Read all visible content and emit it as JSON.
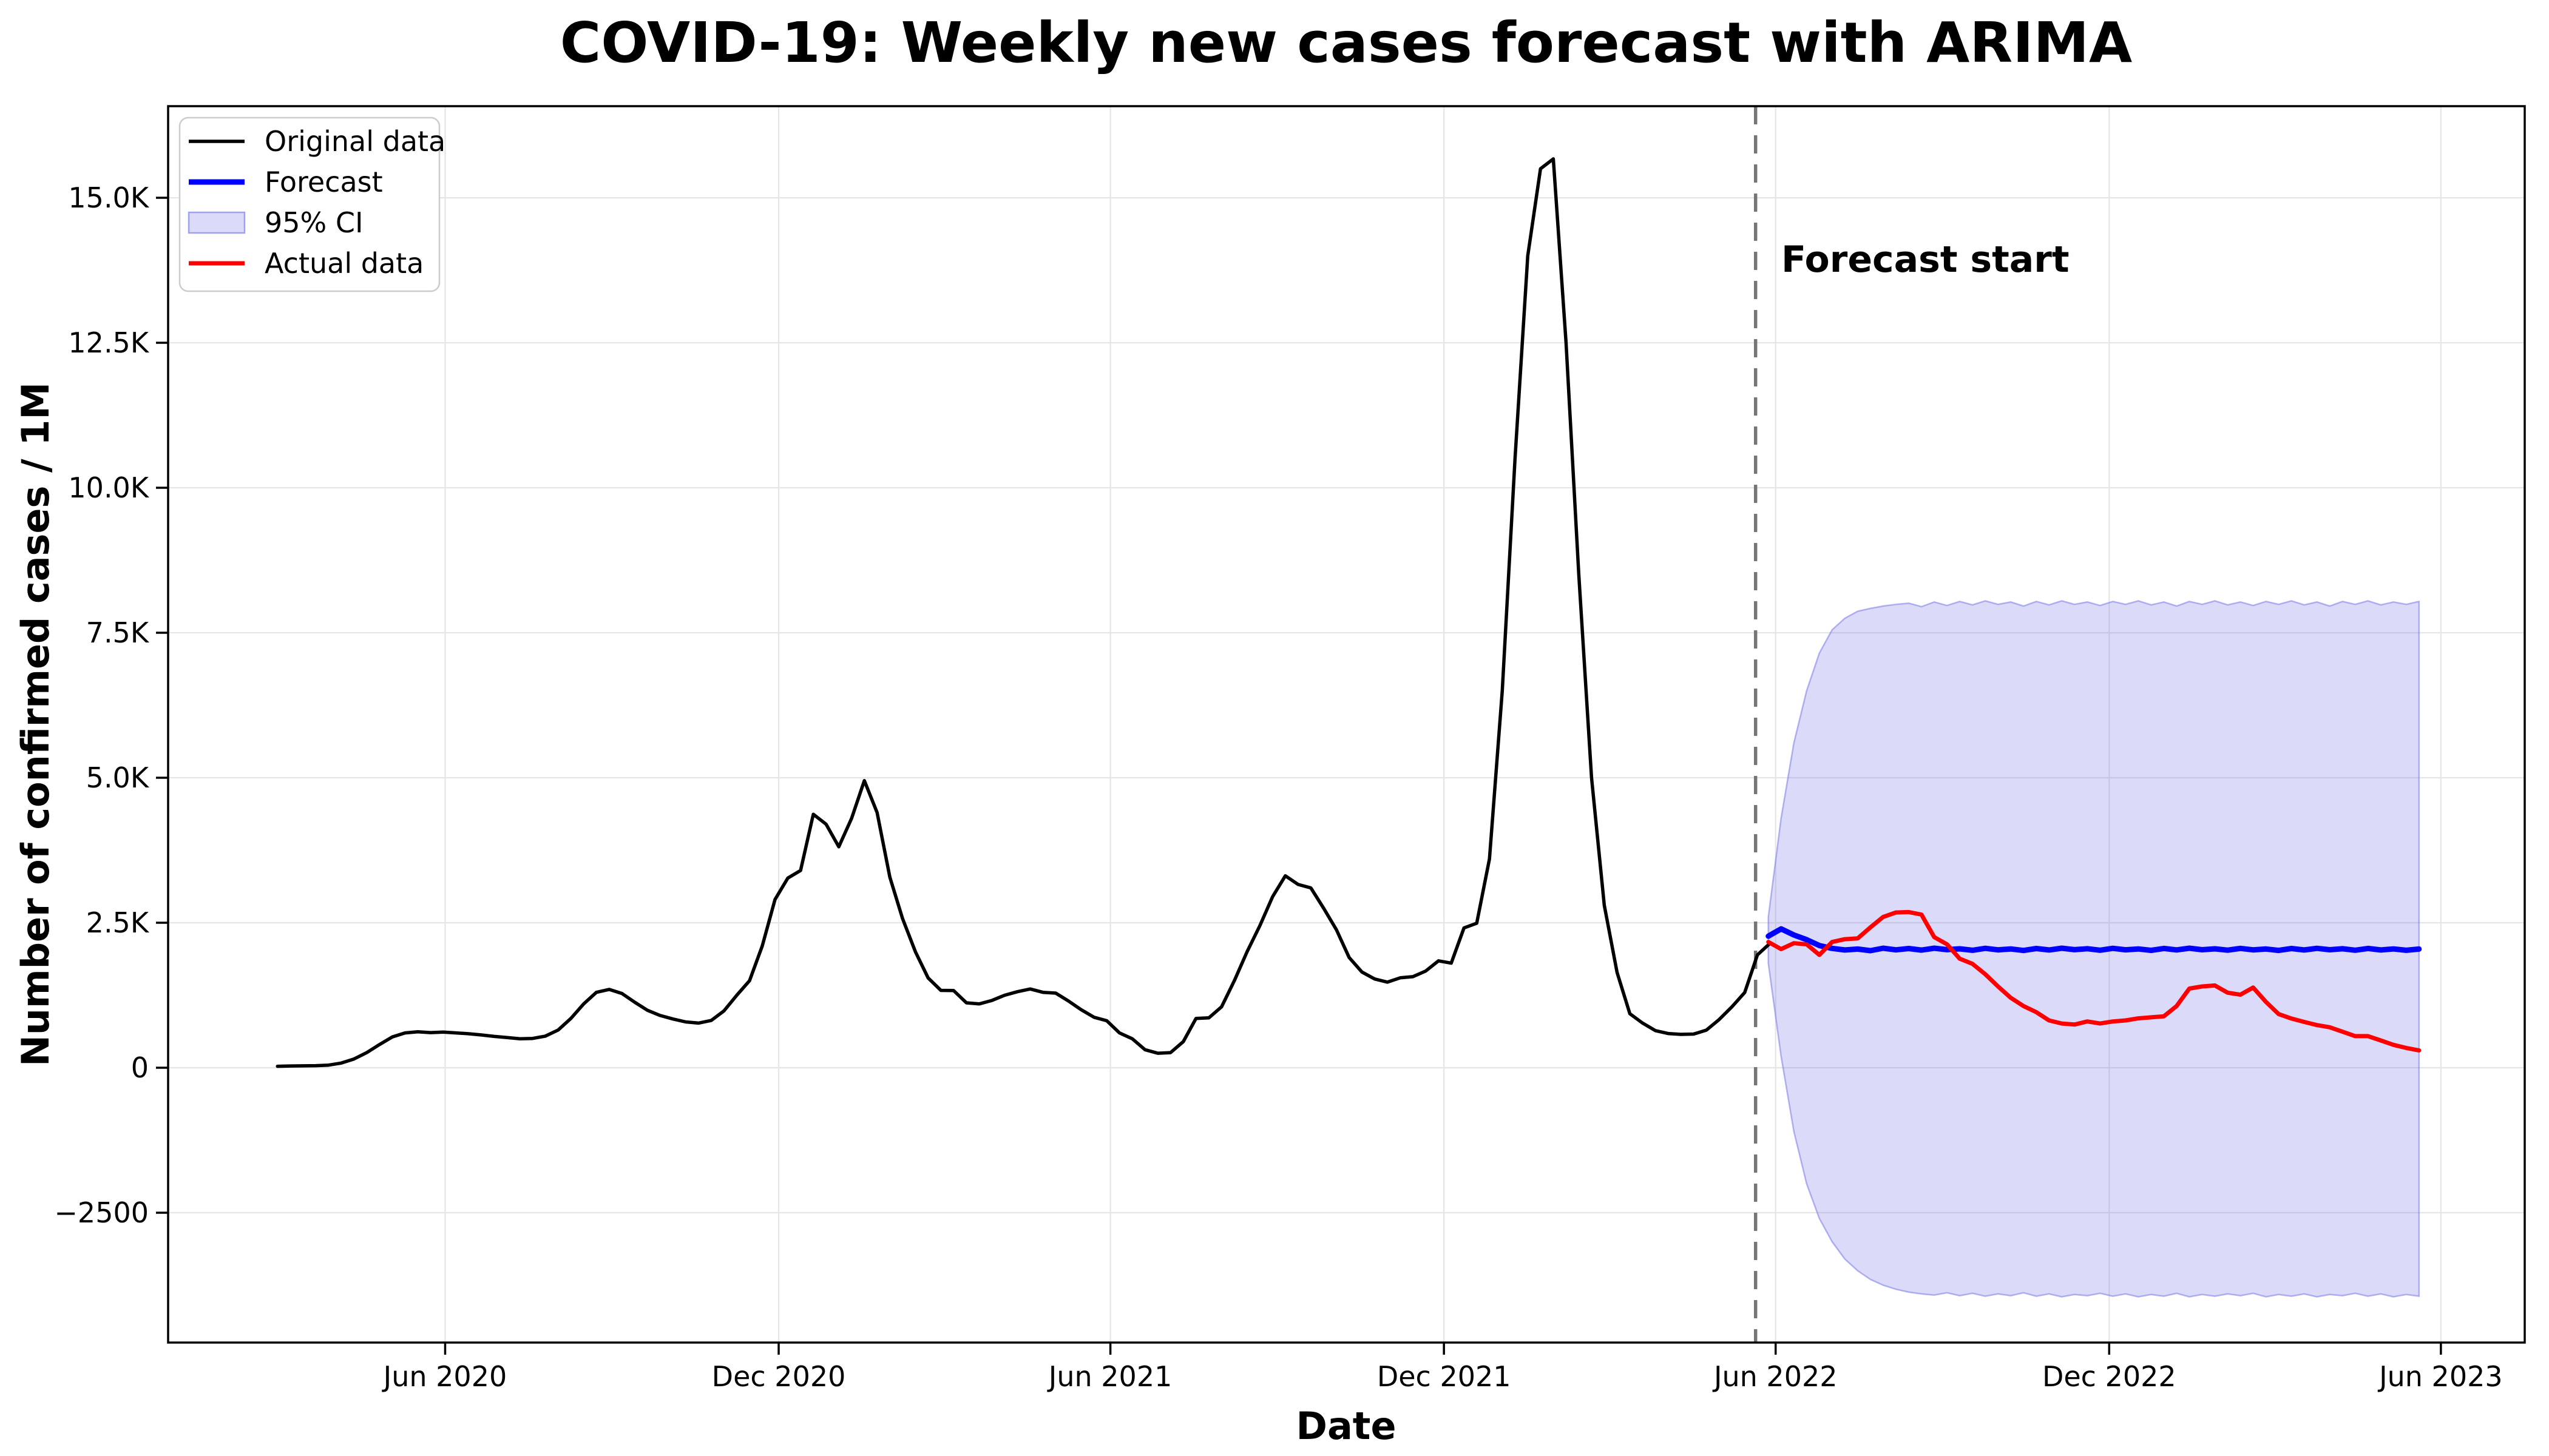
{
  "chart_data": {
    "type": "line",
    "title": "COVID-19: Weekly new cases forecast with ARIMA",
    "xlabel": "Date",
    "ylabel": "Number of confirmed cases / 1M",
    "annotation": "Forecast start",
    "grid": true,
    "forecast_start": "2022-05-21",
    "x_axis": {
      "range": [
        "2020-01-01",
        "2023-07-17"
      ],
      "ticks": [
        {
          "date": "2020-06-01",
          "label": "Jun 2020"
        },
        {
          "date": "2020-12-01",
          "label": "Dec 2020"
        },
        {
          "date": "2021-06-01",
          "label": "Jun 2021"
        },
        {
          "date": "2021-12-01",
          "label": "Dec 2021"
        },
        {
          "date": "2022-06-01",
          "label": "Jun 2022"
        },
        {
          "date": "2022-12-01",
          "label": "Dec 2022"
        },
        {
          "date": "2023-06-01",
          "label": "Jun 2023"
        }
      ]
    },
    "y_axis": {
      "range": [
        -4739,
        16580
      ],
      "ticks": [
        {
          "value": 15000,
          "label": "15.0K"
        },
        {
          "value": 12500,
          "label": "12.5K"
        },
        {
          "value": 10000,
          "label": "10.0K"
        },
        {
          "value": 7500,
          "label": "7.5K"
        },
        {
          "value": 5000,
          "label": "5.0K"
        },
        {
          "value": 2500,
          "label": "2.5K"
        },
        {
          "value": 0,
          "label": "0"
        },
        {
          "value": -2500,
          "label": "-2500"
        }
      ]
    },
    "colors": {
      "original": "#000000",
      "forecast": "#0000ff",
      "actual": "#ff0000",
      "ci_fill": "rgba(110,110,230,0.25)",
      "ci_edge": "rgba(110,110,230,0.5)",
      "grid": "#e5e5e5",
      "spine": "#000000",
      "forecast_start_line": "#757575",
      "legend_border": "#cccccc"
    },
    "legend": {
      "position": "upper left",
      "items": [
        {
          "label": "Original data",
          "type": "line",
          "color": "#000000"
        },
        {
          "label": "Forecast",
          "type": "line",
          "color": "#0000ff"
        },
        {
          "label": "95% CI",
          "type": "patch",
          "color": "rgba(110,110,230,0.25)",
          "edge": "rgba(110,110,230,0.6)"
        },
        {
          "label": "Actual data",
          "type": "line",
          "color": "#ff0000"
        }
      ]
    },
    "series": {
      "original": {
        "name": "Original data",
        "start": "2020-03-01",
        "step_days": 7,
        "values": [
          25,
          30,
          32,
          35,
          45,
          80,
          150,
          260,
          400,
          530,
          600,
          620,
          605,
          615,
          600,
          585,
          565,
          540,
          520,
          500,
          505,
          545,
          650,
          850,
          1100,
          1300,
          1350,
          1280,
          1130,
          990,
          900,
          840,
          790,
          770,
          815,
          980,
          1250,
          1500,
          2100,
          2900,
          3270,
          3400,
          4370,
          4200,
          3810,
          4300,
          4950,
          4400,
          3286,
          2570,
          2000,
          1548,
          1333,
          1330,
          1119,
          1100,
          1160,
          1250,
          1310,
          1357,
          1300,
          1286,
          1150,
          1000,
          870,
          810,
          600,
          500,
          310,
          250,
          260,
          450,
          850,
          860,
          1050,
          1500,
          2000,
          2450,
          2950,
          3310,
          3160,
          3100,
          2750,
          2380,
          1900,
          1650,
          1530,
          1476,
          1550,
          1570,
          1667,
          1843,
          1803,
          2410,
          2491,
          3600,
          6500,
          10500,
          14000,
          15500,
          15671,
          12500,
          8500,
          5000,
          2800,
          1641,
          932,
          770,
          640,
          590,
          575,
          580,
          648,
          830,
          1050,
          1296,
          1945,
          2147
        ]
      },
      "forecast": {
        "name": "Forecast",
        "start": "2022-05-28",
        "step_days": 7,
        "values": [
          2269,
          2394,
          2289,
          2208,
          2107,
          2057,
          2030,
          2046,
          2019,
          2060,
          2032,
          2055,
          2028,
          2060,
          2035,
          2050,
          2025,
          2058,
          2032,
          2048,
          2022,
          2055,
          2030,
          2060,
          2035,
          2052,
          2026,
          2058,
          2033,
          2048,
          2024,
          2056,
          2031,
          2060,
          2034,
          2050,
          2027,
          2057,
          2032,
          2047,
          2023,
          2055,
          2030,
          2058,
          2034,
          2051,
          2026,
          2056,
          2030,
          2048,
          2025,
          2046
        ]
      },
      "actual": {
        "name": "Actual data",
        "start": "2022-05-28",
        "step_days": 7,
        "values": [
          2168,
          2046,
          2147,
          2127,
          1945,
          2168,
          2216,
          2230,
          2420,
          2600,
          2677,
          2684,
          2641,
          2252,
          2128,
          1879,
          1791,
          1613,
          1401,
          1206,
          1064,
          958,
          816,
          762,
          745,
          798,
          762,
          798,
          816,
          851,
          869,
          887,
          1064,
          1365,
          1401,
          1418,
          1294,
          1259,
          1383,
          1135,
          924,
          848,
          790,
          735,
          697,
          621,
          545,
          545,
          470,
          394,
          341,
          299
        ]
      },
      "ci": {
        "name": "95% CI",
        "start": "2022-05-28",
        "step_days": 7,
        "upper": [
          2600,
          4300,
          5600,
          6500,
          7150,
          7550,
          7750,
          7870,
          7920,
          7960,
          7990,
          8010,
          7950,
          8030,
          7970,
          8040,
          7980,
          8050,
          7990,
          8030,
          7960,
          8040,
          7980,
          8050,
          7990,
          8030,
          7970,
          8040,
          7990,
          8050,
          7980,
          8030,
          7960,
          8040,
          7990,
          8050,
          7980,
          8030,
          7970,
          8040,
          7990,
          8050,
          7980,
          8030,
          7960,
          8040,
          7990,
          8050,
          7980,
          8030,
          7990,
          8040
        ],
        "lower": [
          1800,
          200,
          -1100,
          -2000,
          -2600,
          -3000,
          -3300,
          -3500,
          -3650,
          -3750,
          -3820,
          -3870,
          -3900,
          -3920,
          -3880,
          -3930,
          -3890,
          -3940,
          -3900,
          -3930,
          -3880,
          -3940,
          -3900,
          -3950,
          -3910,
          -3930,
          -3890,
          -3940,
          -3900,
          -3950,
          -3910,
          -3940,
          -3890,
          -3950,
          -3910,
          -3940,
          -3900,
          -3930,
          -3890,
          -3950,
          -3910,
          -3940,
          -3900,
          -3950,
          -3910,
          -3930,
          -3890,
          -3940,
          -3900,
          -3950,
          -3910,
          -3940
        ]
      }
    }
  }
}
